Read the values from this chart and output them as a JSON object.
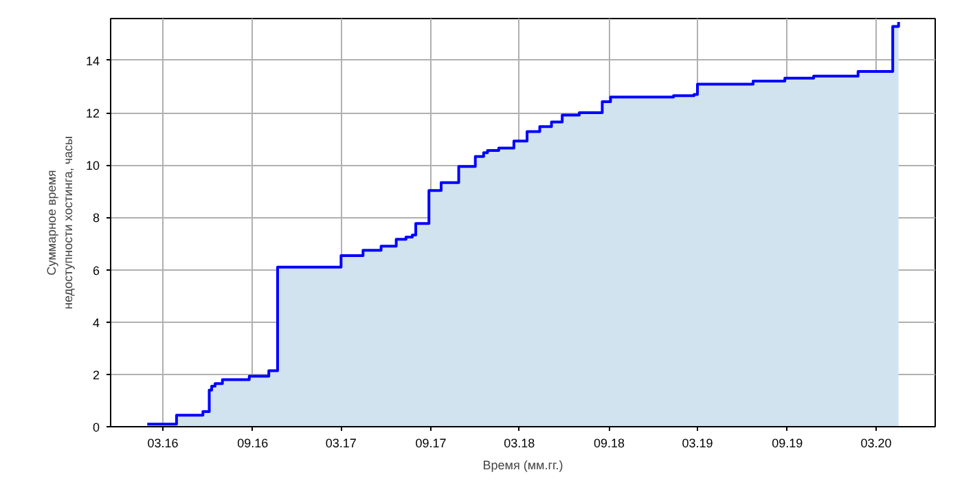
{
  "chart_data": {
    "type": "step",
    "xlabel": "Время (мм.гг.)",
    "ylabel": "Суммарное время\nнедоступности хостинга, часы",
    "x": [
      "2016-01-29",
      "2016-03-29",
      "2016-05-22",
      "2016-06-04",
      "2016-06-09",
      "2016-06-16",
      "2016-07-01",
      "2016-08-25",
      "2016-10-04",
      "2016-10-22",
      "2017-03-01",
      "2017-04-15",
      "2017-05-22",
      "2017-06-22",
      "2017-07-12",
      "2017-07-25",
      "2017-08-01",
      "2017-08-28",
      "2017-09-22",
      "2017-10-28",
      "2017-12-01",
      "2017-12-18",
      "2017-12-26",
      "2018-01-18",
      "2018-02-18",
      "2018-03-17",
      "2018-04-12",
      "2018-05-06",
      "2018-05-28",
      "2018-07-02",
      "2018-08-18",
      "2018-09-04",
      "2019-01-11",
      "2019-02-22",
      "2019-03-01",
      "2019-06-23",
      "2019-08-27",
      "2019-10-25",
      "2020-01-24",
      "2020-04-04",
      "2020-04-16"
    ],
    "series": [
      {
        "type": "area",
        "color": "#d2e3f0",
        "values": [
          0.1,
          0.44,
          0.58,
          1.4,
          1.55,
          1.65,
          1.8,
          1.93,
          2.14,
          6.1,
          6.54,
          6.74,
          6.9,
          7.16,
          7.25,
          7.33,
          7.77,
          9.03,
          9.33,
          9.95,
          10.33,
          10.47,
          10.56,
          10.65,
          10.92,
          11.28,
          11.47,
          11.65,
          11.91,
          12.0,
          12.42,
          12.6,
          12.65,
          12.7,
          13.09,
          13.21,
          13.32,
          13.4,
          13.58,
          15.3,
          15.47
        ]
      },
      {
        "color": "#0000ff",
        "values": [
          0.1,
          0.44,
          0.58,
          1.4,
          1.55,
          1.65,
          1.8,
          1.93,
          2.14,
          6.1,
          6.54,
          6.74,
          6.9,
          7.16,
          7.25,
          7.33,
          7.77,
          9.03,
          9.33,
          9.95,
          10.33,
          10.47,
          10.56,
          10.65,
          10.92,
          11.28,
          11.47,
          11.65,
          11.91,
          12.0,
          12.42,
          12.6,
          12.65,
          12.7,
          13.09,
          13.21,
          13.32,
          13.4,
          13.58,
          15.3,
          15.47
        ]
      }
    ],
    "xlim": [
      "2015-11-15",
      "2020-06-30"
    ],
    "xticks": [
      {
        "value": "2016-03-01",
        "label": "03.16"
      },
      {
        "value": "2016-09-01",
        "label": "09.16"
      },
      {
        "value": "2017-03-01",
        "label": "03.17"
      },
      {
        "value": "2017-09-01",
        "label": "09.17"
      },
      {
        "value": "2018-03-01",
        "label": "03.18"
      },
      {
        "value": "2018-09-01",
        "label": "09.18"
      },
      {
        "value": "2019-03-01",
        "label": "03.19"
      },
      {
        "value": "2019-09-01",
        "label": "09.19"
      },
      {
        "value": "2020-03-01",
        "label": "03.20"
      }
    ],
    "ylim": [
      0,
      15.6
    ],
    "yticks": [
      0,
      2,
      4,
      6,
      8,
      10,
      12,
      14
    ],
    "grid": true
  }
}
